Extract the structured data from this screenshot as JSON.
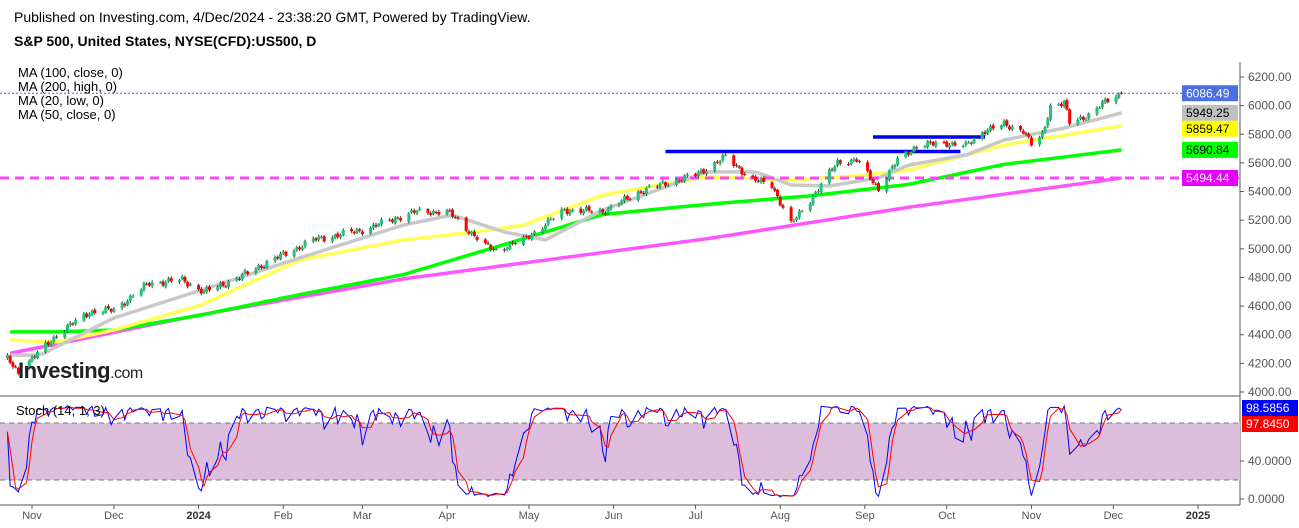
{
  "header": {
    "published": "Published on Investing.com, 4/Dec/2024 - 23:38:20 GMT, Powered by TradingView.",
    "symbol": "S&P 500, United States, NYSE(CFD):US500, D"
  },
  "logo": {
    "main": "Investing",
    "suffix": ".com"
  },
  "chart_data": {
    "type": "candlestick",
    "title": "S&P 500, United States, NYSE(CFD):US500, D",
    "ylim": [
      4000,
      6250
    ],
    "yticks": [
      4000,
      4200,
      4400,
      4600,
      4800,
      5000,
      5200,
      5400,
      5600,
      5800,
      6000,
      6200
    ],
    "xticks": [
      {
        "date": "2023-11-01",
        "label": "Nov"
      },
      {
        "date": "2023-12-01",
        "label": "Dec"
      },
      {
        "date": "2024-01-01",
        "label": "2024",
        "year": true
      },
      {
        "date": "2024-02-01",
        "label": "Feb"
      },
      {
        "date": "2024-03-01",
        "label": "Mar"
      },
      {
        "date": "2024-04-01",
        "label": "Apr"
      },
      {
        "date": "2024-05-01",
        "label": "May"
      },
      {
        "date": "2024-06-01",
        "label": "Jun"
      },
      {
        "date": "2024-07-01",
        "label": "Jul"
      },
      {
        "date": "2024-08-01",
        "label": "Aug"
      },
      {
        "date": "2024-09-01",
        "label": "Sep"
      },
      {
        "date": "2024-10-01",
        "label": "Oct"
      },
      {
        "date": "2024-11-01",
        "label": "Nov"
      },
      {
        "date": "2024-12-01",
        "label": "Dec"
      },
      {
        "date": "2025-01-01",
        "label": "2025",
        "year": true
      }
    ],
    "xrange": [
      "2023-10-21",
      "2025-01-20"
    ],
    "price_anchors": [
      [
        "2023-10-23",
        4230
      ],
      [
        "2023-10-27",
        4140
      ],
      [
        "2023-11-01",
        4230
      ],
      [
        "2023-11-10",
        4398
      ],
      [
        "2023-11-22",
        4559
      ],
      [
        "2023-12-01",
        4573
      ],
      [
        "2023-12-14",
        4761
      ],
      [
        "2023-12-26",
        4782
      ],
      [
        "2024-01-03",
        4698
      ],
      [
        "2024-01-16",
        4800
      ],
      [
        "2024-01-22",
        4866
      ],
      [
        "2024-01-31",
        4950
      ],
      [
        "2024-02-12",
        5062
      ],
      [
        "2024-03-01",
        5131
      ],
      [
        "2024-03-20",
        5257
      ],
      [
        "2024-04-01",
        5260
      ],
      [
        "2024-04-04",
        5215
      ],
      [
        "2024-04-15",
        5020
      ],
      [
        "2024-04-19",
        4990
      ],
      [
        "2024-04-29",
        5062
      ],
      [
        "2024-05-14",
        5271
      ],
      [
        "2024-05-28",
        5260
      ],
      [
        "2024-06-12",
        5411
      ],
      [
        "2024-07-01",
        5516
      ],
      [
        "2024-07-12",
        5641
      ],
      [
        "2024-07-22",
        5481
      ],
      [
        "2024-07-29",
        5446
      ],
      [
        "2024-08-05",
        5170
      ],
      [
        "2024-08-12",
        5341
      ],
      [
        "2024-08-22",
        5606
      ],
      [
        "2024-08-29",
        5620
      ],
      [
        "2024-09-06",
        5420
      ],
      [
        "2024-09-13",
        5620
      ],
      [
        "2024-09-20",
        5720
      ],
      [
        "2024-10-01",
        5739
      ],
      [
        "2024-10-08",
        5718
      ],
      [
        "2024-10-15",
        5830
      ],
      [
        "2024-10-22",
        5865
      ],
      [
        "2024-10-29",
        5830
      ],
      [
        "2024-11-01",
        5725
      ],
      [
        "2024-11-05",
        5795
      ],
      [
        "2024-11-08",
        6000
      ],
      [
        "2024-11-13",
        6018
      ],
      [
        "2024-11-15",
        5880
      ],
      [
        "2024-11-22",
        5935
      ],
      [
        "2024-11-29",
        6039
      ],
      [
        "2024-12-04",
        6086.49
      ]
    ],
    "last_price": 6086.49,
    "moving_averages": [
      {
        "name": "MA (100, close, 0)",
        "color": "#00ff00",
        "last": "5690.84",
        "label_text_color": "#000000",
        "points": [
          [
            "2023-10-24",
            4420
          ],
          [
            "2023-11-10",
            4420
          ],
          [
            "2023-12-01",
            4433
          ],
          [
            "2024-01-02",
            4538
          ],
          [
            "2024-02-07",
            4680
          ],
          [
            "2024-03-16",
            4820
          ],
          [
            "2024-04-22",
            5030
          ],
          [
            "2024-05-28",
            5240
          ],
          [
            "2024-07-05",
            5310
          ],
          [
            "2024-08-12",
            5370
          ],
          [
            "2024-09-17",
            5450
          ],
          [
            "2024-10-22",
            5590
          ],
          [
            "2024-12-04",
            5690.84
          ]
        ]
      },
      {
        "name": "MA (200, high, 0)",
        "color": "#ff55ff",
        "last": "5494.44",
        "label_text_color": "#ffffff",
        "label_color": "#e600ff",
        "points": [
          [
            "2023-10-24",
            4270
          ],
          [
            "2024-01-02",
            4540
          ],
          [
            "2024-03-16",
            4790
          ],
          [
            "2024-07-05",
            5070
          ],
          [
            "2024-09-17",
            5290
          ],
          [
            "2024-12-04",
            5494.44
          ]
        ]
      },
      {
        "name": "MA (20, low, 0)",
        "color": "#c8c8c8",
        "last": "5949.25",
        "label_text_color": "#000000",
        "label_color": "#c0c0c0",
        "points": [
          [
            "2023-10-24",
            4258
          ],
          [
            "2023-11-04",
            4258
          ],
          [
            "2023-12-01",
            4517
          ],
          [
            "2024-01-02",
            4712
          ],
          [
            "2024-02-07",
            4936
          ],
          [
            "2024-03-16",
            5166
          ],
          [
            "2024-04-03",
            5236
          ],
          [
            "2024-04-22",
            5117
          ],
          [
            "2024-05-07",
            5062
          ],
          [
            "2024-05-28",
            5271
          ],
          [
            "2024-07-05",
            5537
          ],
          [
            "2024-07-23",
            5537
          ],
          [
            "2024-08-05",
            5446
          ],
          [
            "2024-08-19",
            5439
          ],
          [
            "2024-09-06",
            5495
          ],
          [
            "2024-09-17",
            5585
          ],
          [
            "2024-10-08",
            5655
          ],
          [
            "2024-10-22",
            5760
          ],
          [
            "2024-11-13",
            5844
          ],
          [
            "2024-12-04",
            5949.25
          ]
        ]
      },
      {
        "name": "MA (50, close, 0)",
        "color": "#ffff55",
        "last": "5859.47",
        "label_text_color": "#000000",
        "label_color": "#ffff00",
        "points": [
          [
            "2023-10-24",
            4363
          ],
          [
            "2023-11-10",
            4349
          ],
          [
            "2023-12-01",
            4433
          ],
          [
            "2024-01-02",
            4608
          ],
          [
            "2024-02-07",
            4922
          ],
          [
            "2024-03-16",
            5062
          ],
          [
            "2024-04-11",
            5117
          ],
          [
            "2024-04-29",
            5166
          ],
          [
            "2024-05-28",
            5376
          ],
          [
            "2024-07-05",
            5502
          ],
          [
            "2024-08-05",
            5481
          ],
          [
            "2024-08-29",
            5509
          ],
          [
            "2024-09-17",
            5550
          ],
          [
            "2024-10-22",
            5725
          ],
          [
            "2024-12-04",
            5859.47
          ]
        ]
      }
    ],
    "horizontal_lines": [
      {
        "name": "support-line-5494",
        "price": 5494.44,
        "color": "#ff44ff",
        "style": "dashed"
      }
    ],
    "trend_segments": [
      {
        "from": "2024-06-20",
        "to": "2024-10-06",
        "price": 5680,
        "color": "#0000ee"
      },
      {
        "from": "2024-09-04",
        "to": "2024-10-15",
        "price": 5781,
        "color": "#0000ee"
      }
    ],
    "stoch": {
      "name": "Stoch (14, 1, 3)",
      "ylim": [
        0,
        100
      ],
      "yticks": [
        {
          "v": 0,
          "label": "0.0000"
        },
        {
          "v": 40,
          "label": "40.0000"
        }
      ],
      "bands": [
        20,
        80
      ],
      "k_last": "98.5856",
      "d_last": "97.8450",
      "k_color": "#0000ff",
      "d_color": "#ff0000",
      "band_color": "#dcbedc"
    },
    "colors": {
      "up": "#22c27a",
      "down": "#ff0000",
      "wick": "#1a4a2a"
    }
  }
}
